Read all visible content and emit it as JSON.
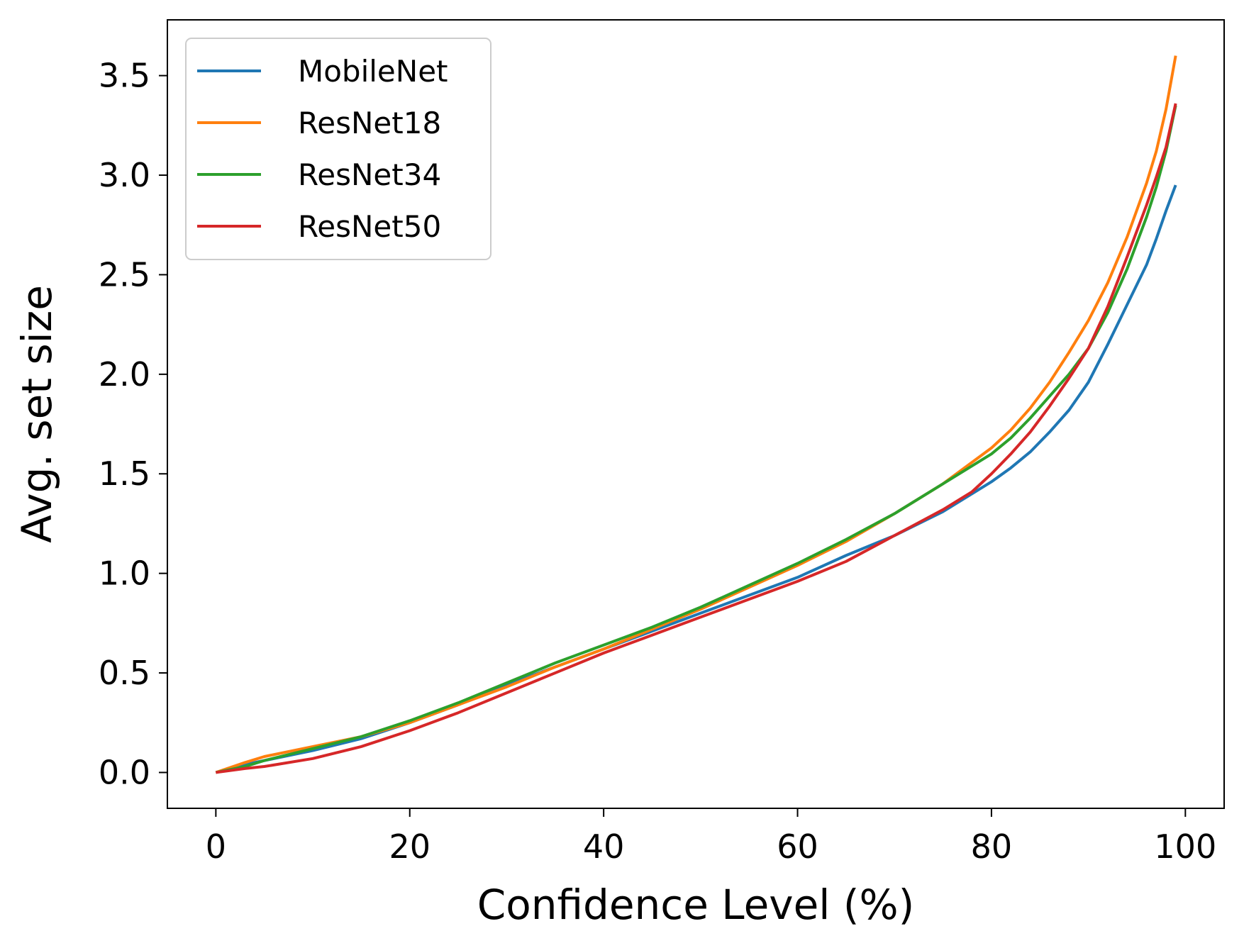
{
  "chart_data": {
    "type": "line",
    "title": "",
    "xlabel": "Confidence Level (%)",
    "ylabel": "Avg. set size",
    "xlim": [
      -5,
      104
    ],
    "ylim": [
      -0.18,
      3.78
    ],
    "xticks": [
      0,
      20,
      40,
      60,
      80,
      100
    ],
    "xtick_labels": [
      "0",
      "20",
      "40",
      "60",
      "80",
      "100"
    ],
    "yticks": [
      0.0,
      0.5,
      1.0,
      1.5,
      2.0,
      2.5,
      3.0,
      3.5
    ],
    "ytick_labels": [
      "0.0",
      "0.5",
      "1.0",
      "1.5",
      "2.0",
      "2.5",
      "3.0",
      "3.5"
    ],
    "grid": false,
    "legend_position": "upper-left",
    "series": [
      {
        "name": "MobileNet",
        "color": "#1f77b4",
        "x": [
          0,
          3,
          5,
          10,
          15,
          20,
          25,
          30,
          35,
          40,
          45,
          50,
          55,
          60,
          65,
          70,
          75,
          80,
          82,
          84,
          86,
          88,
          90,
          92,
          94,
          96,
          97,
          98,
          99
        ],
        "y": [
          0.0,
          0.04,
          0.06,
          0.11,
          0.17,
          0.25,
          0.34,
          0.44,
          0.53,
          0.62,
          0.71,
          0.8,
          0.89,
          0.98,
          1.09,
          1.19,
          1.31,
          1.46,
          1.53,
          1.61,
          1.71,
          1.82,
          1.96,
          2.15,
          2.35,
          2.55,
          2.68,
          2.82,
          2.95
        ]
      },
      {
        "name": "ResNet18",
        "color": "#ff7f0e",
        "x": [
          0,
          3,
          5,
          10,
          15,
          20,
          25,
          30,
          35,
          40,
          45,
          50,
          55,
          60,
          65,
          70,
          75,
          80,
          82,
          84,
          86,
          88,
          90,
          92,
          94,
          96,
          97,
          98,
          99
        ],
        "y": [
          0.0,
          0.05,
          0.08,
          0.13,
          0.18,
          0.25,
          0.34,
          0.43,
          0.53,
          0.62,
          0.72,
          0.82,
          0.93,
          1.04,
          1.16,
          1.3,
          1.45,
          1.63,
          1.72,
          1.83,
          1.96,
          2.11,
          2.27,
          2.46,
          2.69,
          2.96,
          3.12,
          3.33,
          3.6
        ]
      },
      {
        "name": "ResNet34",
        "color": "#2ca02c",
        "x": [
          0,
          3,
          5,
          10,
          15,
          20,
          25,
          30,
          35,
          40,
          45,
          50,
          55,
          60,
          65,
          70,
          75,
          80,
          82,
          84,
          86,
          88,
          90,
          92,
          94,
          96,
          97,
          98,
          99
        ],
        "y": [
          0.0,
          0.03,
          0.06,
          0.12,
          0.18,
          0.26,
          0.35,
          0.45,
          0.55,
          0.64,
          0.73,
          0.83,
          0.94,
          1.05,
          1.17,
          1.3,
          1.45,
          1.6,
          1.68,
          1.78,
          1.89,
          2.0,
          2.13,
          2.31,
          2.53,
          2.79,
          2.94,
          3.12,
          3.35
        ]
      },
      {
        "name": "ResNet50",
        "color": "#d62728",
        "x": [
          0,
          3,
          5,
          10,
          15,
          20,
          25,
          30,
          35,
          40,
          45,
          50,
          55,
          60,
          65,
          70,
          75,
          78,
          80,
          82,
          84,
          86,
          88,
          90,
          92,
          94,
          96,
          97,
          98,
          99
        ],
        "y": [
          0.0,
          0.02,
          0.03,
          0.07,
          0.13,
          0.21,
          0.3,
          0.4,
          0.5,
          0.6,
          0.69,
          0.78,
          0.87,
          0.96,
          1.06,
          1.19,
          1.32,
          1.41,
          1.5,
          1.6,
          1.71,
          1.84,
          1.98,
          2.13,
          2.34,
          2.59,
          2.85,
          2.99,
          3.14,
          3.36
        ]
      }
    ]
  }
}
